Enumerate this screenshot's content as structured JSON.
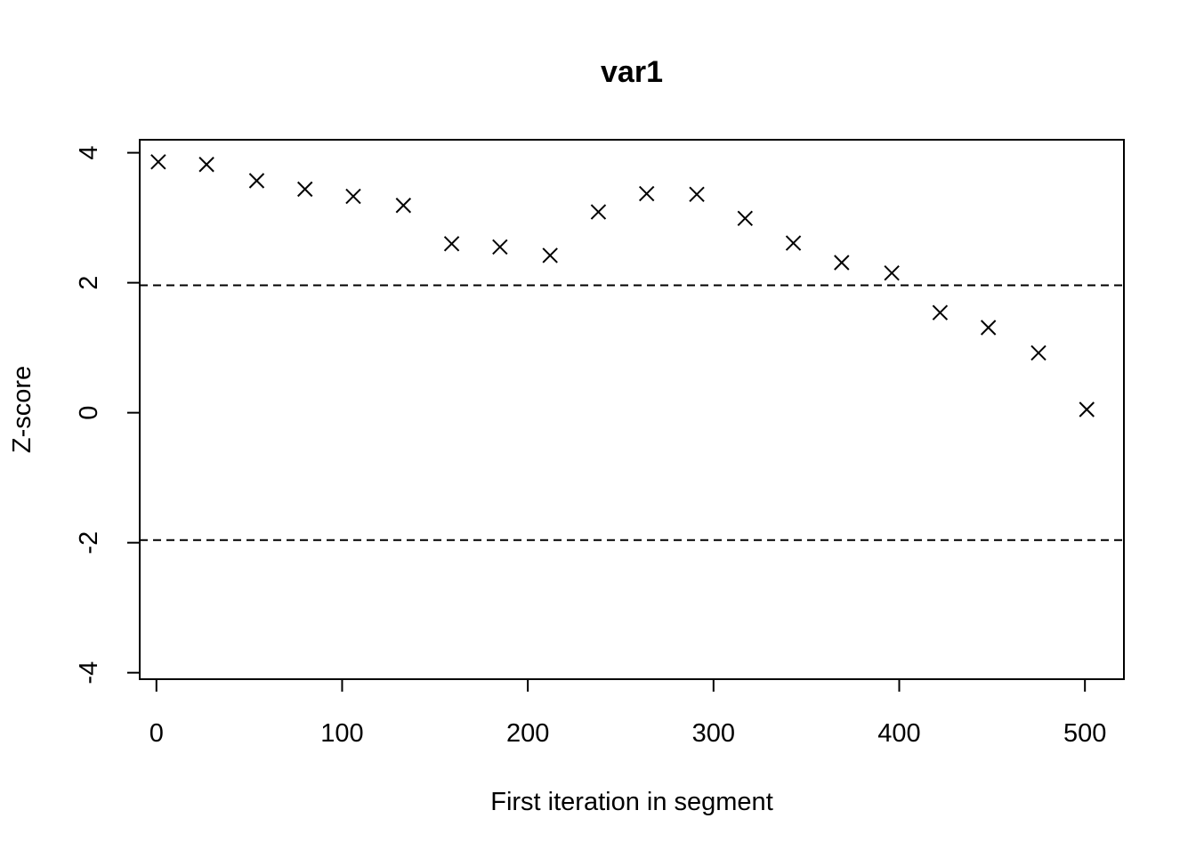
{
  "chart_data": {
    "type": "scatter",
    "title": "var1",
    "xlabel": "First iteration in segment",
    "ylabel": "Z-score",
    "xlim": [
      -9,
      521
    ],
    "ylim": [
      -4.1,
      4.2
    ],
    "x_ticks": [
      0,
      100,
      200,
      300,
      400,
      500
    ],
    "y_ticks": [
      -4,
      -2,
      0,
      2,
      4
    ],
    "x_tick_labels": [
      "0",
      "100",
      "200",
      "300",
      "400",
      "500"
    ],
    "y_tick_labels": [
      "-4",
      "-2",
      "0",
      "2",
      "4"
    ],
    "reference_lines": [
      1.96,
      -1.96
    ],
    "marker": "x",
    "grid": false,
    "series": [
      {
        "x": [
          1,
          27,
          54,
          80,
          106,
          133,
          159,
          185,
          212,
          238,
          264,
          291,
          317,
          343,
          369,
          396,
          422,
          448,
          475,
          501
        ],
        "y": [
          3.86,
          3.82,
          3.57,
          3.44,
          3.33,
          3.19,
          2.6,
          2.55,
          2.42,
          3.09,
          3.37,
          3.36,
          2.99,
          2.61,
          2.31,
          2.15,
          1.54,
          1.31,
          0.92,
          0.05
        ]
      }
    ],
    "colors": {
      "points": "#000000",
      "axes": "#000000",
      "background": "#ffffff"
    }
  }
}
